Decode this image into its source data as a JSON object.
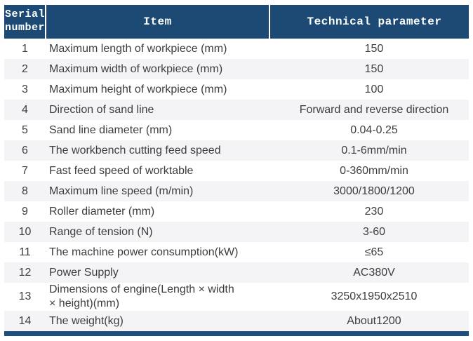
{
  "table": {
    "columns": {
      "serial": "Serial number",
      "item": "Item",
      "parameter": "Technical parameter"
    },
    "rows": [
      {
        "no": "1",
        "item": "Maximum length of workpiece (mm)",
        "value": "150"
      },
      {
        "no": "2",
        "item": "Maximum width of workpiece (mm)",
        "value": "150"
      },
      {
        "no": "3",
        "item": "Maximum height of workpiece (mm)",
        "value": "100"
      },
      {
        "no": "4",
        "item": "Direction of sand line",
        "value": "Forward and reverse direction"
      },
      {
        "no": "5",
        "item": "Sand line diameter (mm)",
        "value": "0.04-0.25"
      },
      {
        "no": "6",
        "item": "The workbench cutting feed speed",
        "value": "0.1-6mm/min"
      },
      {
        "no": "7",
        "item": "Fast feed speed of worktable",
        "value": "0-360mm/min"
      },
      {
        "no": "8",
        "item": "Maximum line speed (m/min)",
        "value": "3000/1800/1200"
      },
      {
        "no": "9",
        "item": "Roller diameter (mm)",
        "value": "230"
      },
      {
        "no": "10",
        "item": "Range of tension (N)",
        "value": "3-60"
      },
      {
        "no": "11",
        "item": "The machine power consumption(kW)",
        "value": "≤65"
      },
      {
        "no": "12",
        "item": "Power Supply",
        "value": "AC380V"
      },
      {
        "no": "13",
        "item": "Dimensions of engine(Length × width × height)(mm)",
        "value": "3250x1950x2510"
      },
      {
        "no": "14",
        "item": "The weight(kg)",
        "value": "About1200"
      }
    ]
  },
  "colors": {
    "header_bg": "#1c4a74",
    "header_text": "#ffffff",
    "stripe_bg": "#f4f4f6",
    "row_bg": "#ffffff",
    "body_text": "#3d3d3d",
    "bottom_bar": "#1c4f7c"
  }
}
